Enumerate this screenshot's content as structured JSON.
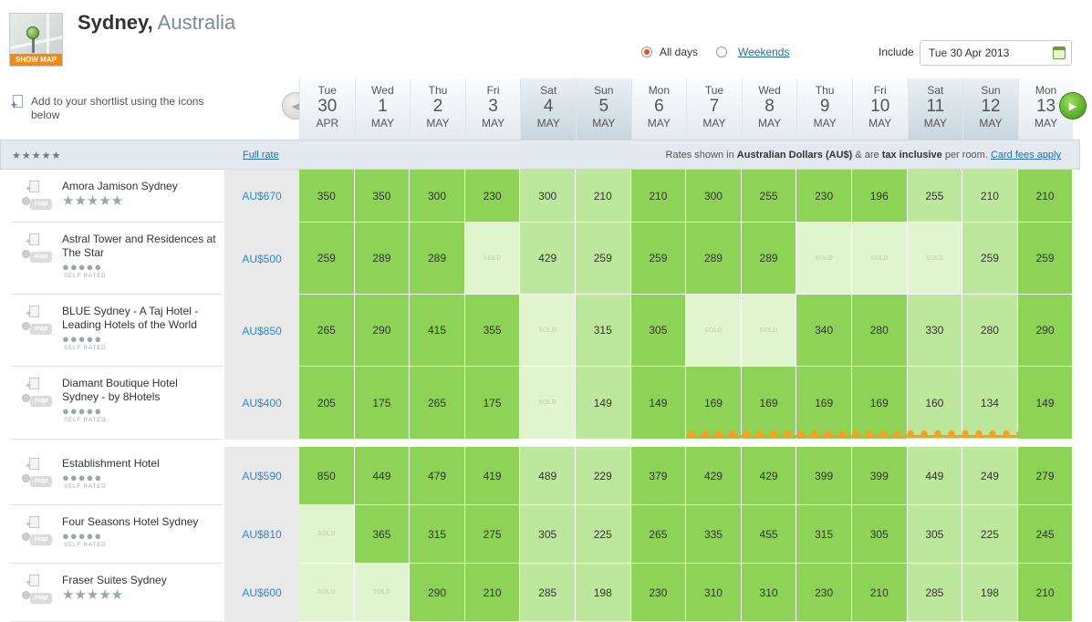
{
  "header": {
    "city": "Sydney,",
    "country": "Australia",
    "show_map": "SHOW MAP",
    "all_days": "All days",
    "weekends": "Weekends",
    "include_label": "Include",
    "include_date": "Tue 30 Apr 2013",
    "shortlist_text": "Add to your shortlist using the icons below"
  },
  "rate_bar": {
    "stars": "★★★★★",
    "full_rate": "Full rate",
    "note_prefix": "Rates shown in ",
    "currency": "Australian Dollars (AU$)",
    "note_mid": " & are ",
    "tax": "tax inclusive",
    "note_suffix": " per room. ",
    "card_fees": "Card fees apply"
  },
  "dates": [
    {
      "dow": "Tue",
      "dom": "30",
      "mon": "APR",
      "weekend": false
    },
    {
      "dow": "Wed",
      "dom": "1",
      "mon": "MAY",
      "weekend": false
    },
    {
      "dow": "Thu",
      "dom": "2",
      "mon": "MAY",
      "weekend": false
    },
    {
      "dow": "Fri",
      "dom": "3",
      "mon": "MAY",
      "weekend": false
    },
    {
      "dow": "Sat",
      "dom": "4",
      "mon": "MAY",
      "weekend": true
    },
    {
      "dow": "Sun",
      "dom": "5",
      "mon": "MAY",
      "weekend": true
    },
    {
      "dow": "Mon",
      "dom": "6",
      "mon": "MAY",
      "weekend": false
    },
    {
      "dow": "Tue",
      "dom": "7",
      "mon": "MAY",
      "weekend": false
    },
    {
      "dow": "Wed",
      "dom": "8",
      "mon": "MAY",
      "weekend": false
    },
    {
      "dow": "Thu",
      "dom": "9",
      "mon": "MAY",
      "weekend": false
    },
    {
      "dow": "Fri",
      "dom": "10",
      "mon": "MAY",
      "weekend": false
    },
    {
      "dow": "Sat",
      "dom": "11",
      "mon": "MAY",
      "weekend": true
    },
    {
      "dow": "Sun",
      "dom": "12",
      "mon": "MAY",
      "weekend": true
    },
    {
      "dow": "Mon",
      "dom": "13",
      "mon": "MAY",
      "weekend": false
    }
  ],
  "icons": {
    "map_label": "map",
    "self_rated": "SELF RATED",
    "dots": "●●●●●",
    "stars": "★★★★★"
  },
  "hotels": [
    {
      "name": "Amora Jamison Sydney",
      "rating": "stars",
      "price": "AU$670",
      "rates": [
        "350",
        "350",
        "300",
        "230",
        "300",
        "210",
        "210",
        "300",
        "255",
        "230",
        "196",
        "255",
        "210",
        "210"
      ],
      "shade": [
        "g",
        "g",
        "g",
        "g",
        "l",
        "l",
        "g",
        "g",
        "g",
        "g",
        "g",
        "l",
        "l",
        "g"
      ]
    },
    {
      "name": "Astral Tower and Residences at The Star",
      "rating": "dots",
      "price": "AU$500",
      "rates": [
        "259",
        "289",
        "289",
        "SOLD",
        "429",
        "259",
        "259",
        "289",
        "289",
        "SOLD",
        "SOLD",
        "SOLD",
        "259",
        "259"
      ],
      "shade": [
        "g",
        "g",
        "g",
        "s",
        "l",
        "l",
        "g",
        "g",
        "g",
        "s",
        "s",
        "s",
        "l",
        "g"
      ]
    },
    {
      "name": "BLUE Sydney - A Taj Hotel - Leading Hotels of the World",
      "rating": "dots",
      "price": "AU$850",
      "rates": [
        "265",
        "290",
        "415",
        "355",
        "SOLD",
        "315",
        "305",
        "SOLD",
        "SOLD",
        "340",
        "280",
        "330",
        "280",
        "290"
      ],
      "shade": [
        "g",
        "g",
        "g",
        "g",
        "s",
        "l",
        "g",
        "s",
        "s",
        "g",
        "g",
        "l",
        "l",
        "g"
      ]
    },
    {
      "name": "Diamant Boutique Hotel Sydney - by 8Hotels",
      "rating": "dots",
      "price": "AU$400",
      "rates": [
        "205",
        "175",
        "265",
        "175",
        "SOLD",
        "149",
        "149",
        "169",
        "169",
        "169",
        "169",
        "160",
        "134",
        "149"
      ],
      "shade": [
        "g",
        "g",
        "g",
        "g",
        "s",
        "l",
        "g",
        "g",
        "g",
        "g",
        "g",
        "l",
        "l",
        "g"
      ]
    },
    {
      "name": "Establishment Hotel",
      "rating": "dots",
      "price": "AU$590",
      "rates": [
        "850",
        "449",
        "479",
        "419",
        "489",
        "229",
        "379",
        "429",
        "429",
        "399",
        "399",
        "449",
        "249",
        "279"
      ],
      "shade": [
        "g",
        "g",
        "g",
        "g",
        "l",
        "l",
        "g",
        "g",
        "g",
        "g",
        "g",
        "l",
        "l",
        "g"
      ]
    },
    {
      "name": "Four Seasons Hotel Sydney",
      "rating": "dots",
      "price": "AU$810",
      "rates": [
        "SOLD",
        "365",
        "315",
        "275",
        "305",
        "225",
        "265",
        "335",
        "455",
        "315",
        "305",
        "305",
        "225",
        "245"
      ],
      "shade": [
        "s",
        "g",
        "g",
        "g",
        "l",
        "l",
        "g",
        "g",
        "g",
        "g",
        "g",
        "l",
        "l",
        "g"
      ]
    },
    {
      "name": "Fraser Suites Sydney",
      "rating": "stars",
      "price": "AU$600",
      "rates": [
        "SOLD",
        "SOLD",
        "290",
        "210",
        "285",
        "198",
        "230",
        "310",
        "310",
        "230",
        "210",
        "285",
        "198",
        "210"
      ],
      "shade": [
        "s",
        "s",
        "g",
        "g",
        "l",
        "l",
        "g",
        "g",
        "g",
        "g",
        "g",
        "l",
        "l",
        "g"
      ]
    }
  ]
}
